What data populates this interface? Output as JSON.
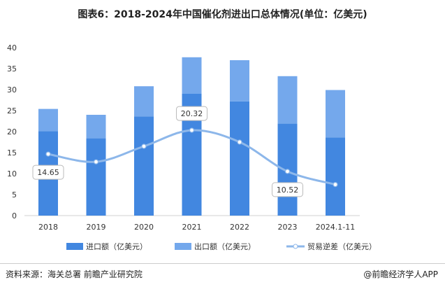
{
  "chart_data": {
    "type": "bar",
    "title": "图表6：2018-2024年中国催化剂进出口总体情况(单位：亿美元)",
    "categories": [
      "2018",
      "2019",
      "2020",
      "2021",
      "2022",
      "2023",
      "2024.1-11"
    ],
    "ylim": [
      0,
      40
    ],
    "yticks": [
      0,
      5,
      10,
      15,
      20,
      25,
      30,
      35,
      40
    ],
    "stacked": true,
    "grid": false,
    "legend_position": "bottom",
    "series": [
      {
        "name": "进口额（亿美元）",
        "type": "bar",
        "color": "#4287e0",
        "values": [
          20.1,
          18.4,
          23.6,
          29.0,
          27.2,
          21.9,
          18.6
        ]
      },
      {
        "name": "出口额（亿美元）",
        "type": "bar",
        "color": "#74a8ec",
        "values": [
          5.3,
          5.6,
          7.2,
          8.7,
          9.8,
          11.3,
          11.3
        ]
      },
      {
        "name": "贸易逆差（亿美元）",
        "type": "line",
        "color": "#8db7ea",
        "values": [
          14.65,
          12.8,
          16.5,
          20.32,
          17.5,
          10.52,
          7.4
        ]
      }
    ],
    "data_labels": [
      {
        "index": 0,
        "text": "14.65"
      },
      {
        "index": 3,
        "text": "20.32"
      },
      {
        "index": 5,
        "text": "10.52"
      }
    ]
  },
  "source": "资料来源：海关总署 前瞻产业研究院",
  "brand": "@前瞻经济学人APP"
}
